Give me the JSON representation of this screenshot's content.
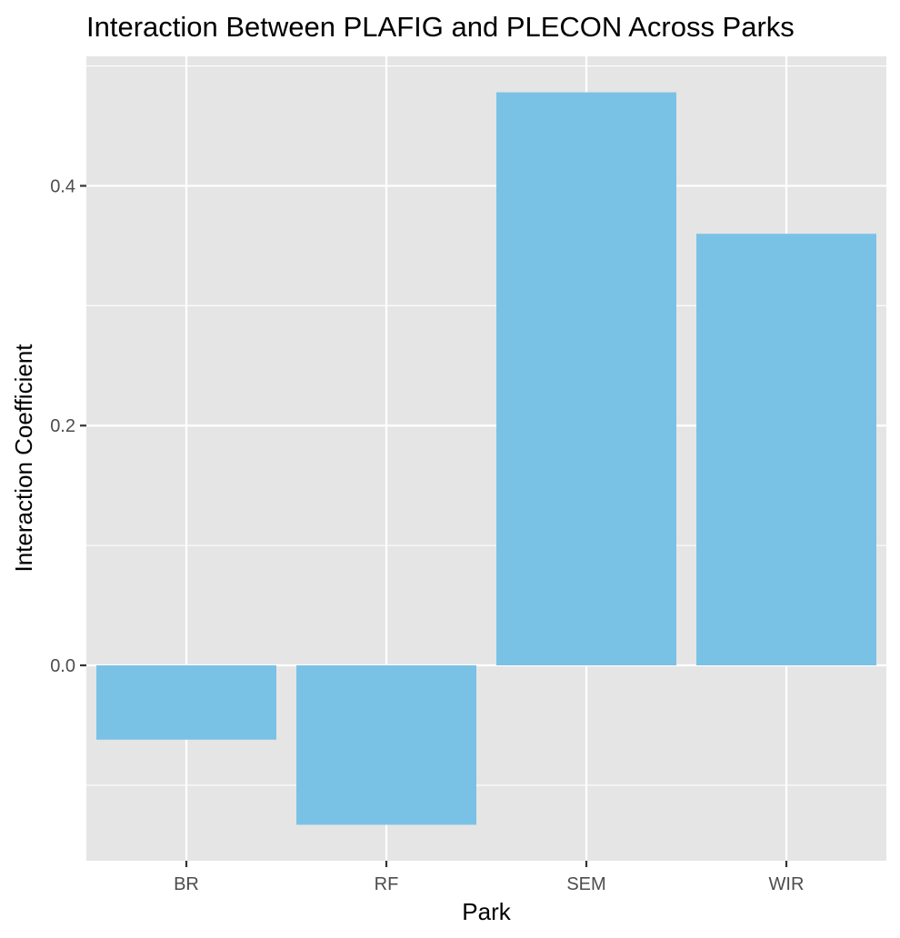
{
  "chart_data": {
    "type": "bar",
    "title": "Interaction Between PLAFIG and PLECON Across Parks",
    "xlabel": "Park",
    "ylabel": "Interaction Coefficient",
    "categories": [
      "BR",
      "RF",
      "SEM",
      "WIR"
    ],
    "values": [
      -0.062,
      -0.133,
      0.478,
      0.36
    ],
    "ylim": [
      -0.163,
      0.508
    ],
    "yticks": [
      0.0,
      0.2,
      0.4
    ],
    "ytick_labels": [
      "0.0",
      "0.2",
      "0.4"
    ],
    "yminor": [
      -0.1,
      0.1,
      0.3,
      0.5
    ],
    "bar_color": "#7ac2e5",
    "panel_color": "#e5e5e5",
    "grid": true,
    "legend": "none"
  }
}
